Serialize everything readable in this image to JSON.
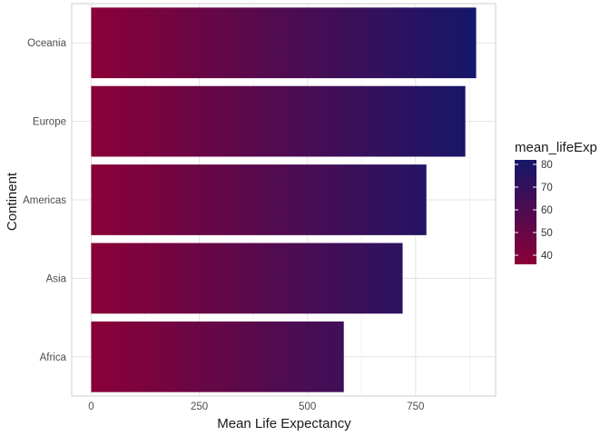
{
  "chart_data": {
    "type": "bar",
    "orientation": "horizontal",
    "categories": [
      "Africa",
      "Asia",
      "Americas",
      "Europe",
      "Oceania"
    ],
    "values": [
      584,
      720,
      775,
      865,
      890
    ],
    "xlabel": "Mean Life Expectancy",
    "ylabel": "Continent",
    "xlim": [
      -45,
      935
    ],
    "xticks": [
      0,
      250,
      500,
      750
    ],
    "grid": true,
    "fill_scale": {
      "title": "mean_lifeExp",
      "low_color": "#8B0037",
      "high_color": "#15176A",
      "range": [
        36,
        82
      ],
      "ticks": [
        40,
        50,
        60,
        70,
        80
      ],
      "legend_position": "right"
    }
  }
}
